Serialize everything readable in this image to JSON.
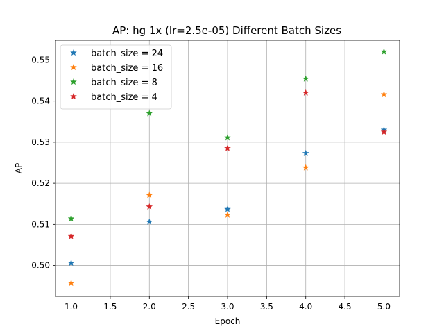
{
  "chart_data": {
    "type": "scatter",
    "title": "AP: hg 1x (lr=2.5e-05) Different Batch Sizes",
    "xlabel": "Epoch",
    "ylabel": "AP",
    "xlim": [
      0.8,
      5.2
    ],
    "ylim": [
      0.4925,
      0.5548
    ],
    "xticks": [
      1.0,
      1.5,
      2.0,
      2.5,
      3.0,
      3.5,
      4.0,
      4.5,
      5.0
    ],
    "xtick_labels": [
      "1.0",
      "1.5",
      "2.0",
      "2.5",
      "3.0",
      "3.5",
      "4.0",
      "4.5",
      "5.0"
    ],
    "yticks": [
      0.5,
      0.51,
      0.52,
      0.53,
      0.54,
      0.55
    ],
    "ytick_labels": [
      "0.50",
      "0.51",
      "0.52",
      "0.53",
      "0.54",
      "0.55"
    ],
    "grid": true,
    "legend_position": "top-left",
    "marker": "star",
    "x": [
      1,
      2,
      3,
      4,
      5
    ],
    "series": [
      {
        "name": "batch_size = 24",
        "color": "#1f77b4",
        "values": [
          0.5006,
          0.5106,
          0.5137,
          0.5273,
          0.533
        ]
      },
      {
        "name": "batch_size = 16",
        "color": "#ff7f0e",
        "values": [
          0.4957,
          0.5171,
          0.5123,
          0.5238,
          0.5416
        ]
      },
      {
        "name": "batch_size = 8",
        "color": "#2ca02c",
        "values": [
          0.5114,
          0.537,
          0.5311,
          0.5454,
          0.552
        ]
      },
      {
        "name": "batch_size = 4",
        "color": "#d62728",
        "values": [
          0.5071,
          0.5143,
          0.5285,
          0.542,
          0.5325
        ]
      }
    ]
  }
}
